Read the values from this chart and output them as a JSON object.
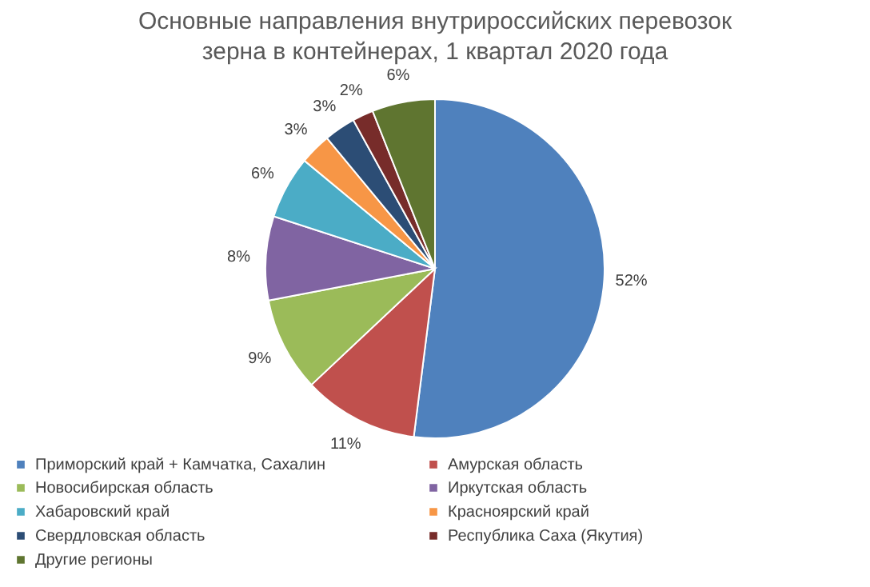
{
  "chart_data": {
    "type": "pie",
    "title": "Основные направления  внутрироссийских перевозок зерна в контейнерах, 1 квартал 2020 года",
    "categories": [
      "Приморский край + Камчатка, Сахалин",
      "Амурская область",
      "Новосибирская область",
      "Иркутская область",
      "Хабаровский край",
      "Красноярский край",
      "Свердловская область",
      "Республика Саха (Якутия)",
      "Другие регионы"
    ],
    "values": [
      52,
      11,
      9,
      8,
      6,
      3,
      3,
      2,
      6
    ],
    "value_labels": [
      "52%",
      "11%",
      "9%",
      "8%",
      "6%",
      "3%",
      "3%",
      "2%",
      "6%"
    ],
    "colors": [
      "#4f81bd",
      "#c0504d",
      "#9bbb59",
      "#8064a2",
      "#4bacc6",
      "#f79646",
      "#2c4d75",
      "#772c2a",
      "#5f7530"
    ],
    "legend": "bottom"
  }
}
